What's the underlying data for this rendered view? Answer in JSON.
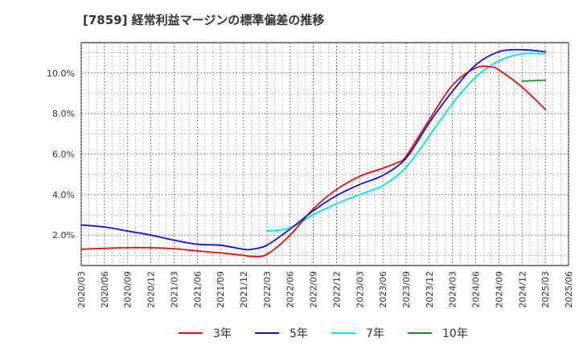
{
  "chart_data": {
    "type": "line",
    "title": "[7859]  経常利益マージンの標準偏差の推移",
    "xlabel": "",
    "ylabel": "",
    "ylim": [
      0.5,
      11.5
    ],
    "x_ticks": [
      "2020/03",
      "2020/06",
      "2020/09",
      "2020/12",
      "2021/03",
      "2021/06",
      "2021/09",
      "2021/12",
      "2022/03",
      "2022/06",
      "2022/09",
      "2022/12",
      "2023/03",
      "2023/06",
      "2023/09",
      "2023/12",
      "2024/03",
      "2024/06",
      "2024/09",
      "2024/12",
      "2025/03",
      "2025/06"
    ],
    "y_ticks": [
      {
        "value": 2,
        "label": "2.0%"
      },
      {
        "value": 4,
        "label": "4.0%"
      },
      {
        "value": 6,
        "label": "6.0%"
      },
      {
        "value": 8,
        "label": "8.0%"
      },
      {
        "value": 10,
        "label": "10.0%"
      }
    ],
    "grid": true,
    "legend_position": "bottom",
    "series": [
      {
        "name": "3年",
        "color": "#dd1111",
        "x": [
          "2020/03",
          "2020/06",
          "2020/09",
          "2020/12",
          "2021/03",
          "2021/06",
          "2021/09",
          "2021/12",
          "2022/01",
          "2022/03",
          "2022/06",
          "2022/09",
          "2022/12",
          "2023/03",
          "2023/06",
          "2023/08",
          "2023/09",
          "2023/12",
          "2024/03",
          "2024/06",
          "2024/08",
          "2024/09",
          "2024/12",
          "2025/03"
        ],
        "values": [
          1.3,
          1.35,
          1.38,
          1.38,
          1.33,
          1.22,
          1.12,
          1.0,
          0.95,
          1.05,
          2.0,
          3.3,
          4.25,
          4.9,
          5.3,
          5.6,
          5.9,
          7.7,
          9.4,
          10.25,
          10.3,
          10.15,
          9.3,
          8.2
        ]
      },
      {
        "name": "5年",
        "color": "#1111cc",
        "x": [
          "2020/03",
          "2020/06",
          "2020/09",
          "2020/12",
          "2021/03",
          "2021/06",
          "2021/09",
          "2021/12",
          "2022/01",
          "2022/03",
          "2022/06",
          "2022/09",
          "2022/12",
          "2023/03",
          "2023/06",
          "2023/09",
          "2023/12",
          "2024/03",
          "2024/06",
          "2024/09",
          "2024/12",
          "2025/03"
        ],
        "values": [
          2.5,
          2.4,
          2.2,
          2.0,
          1.75,
          1.55,
          1.5,
          1.3,
          1.3,
          1.5,
          2.3,
          3.2,
          3.95,
          4.5,
          4.95,
          5.8,
          7.55,
          9.1,
          10.4,
          11.05,
          11.15,
          11.05
        ]
      },
      {
        "name": "7年",
        "color": "#00e5ee",
        "x": [
          "2022/03",
          "2022/06",
          "2022/09",
          "2022/12",
          "2023/03",
          "2023/06",
          "2023/09",
          "2023/12",
          "2024/03",
          "2024/06",
          "2024/09",
          "2024/12",
          "2025/03"
        ],
        "values": [
          2.2,
          2.35,
          3.0,
          3.55,
          4.0,
          4.45,
          5.35,
          6.9,
          8.5,
          9.8,
          10.6,
          10.95,
          10.95
        ]
      },
      {
        "name": "10年",
        "color": "#228b22",
        "x": [
          "2024/12",
          "2025/03"
        ],
        "values": [
          9.6,
          9.65
        ]
      }
    ]
  }
}
